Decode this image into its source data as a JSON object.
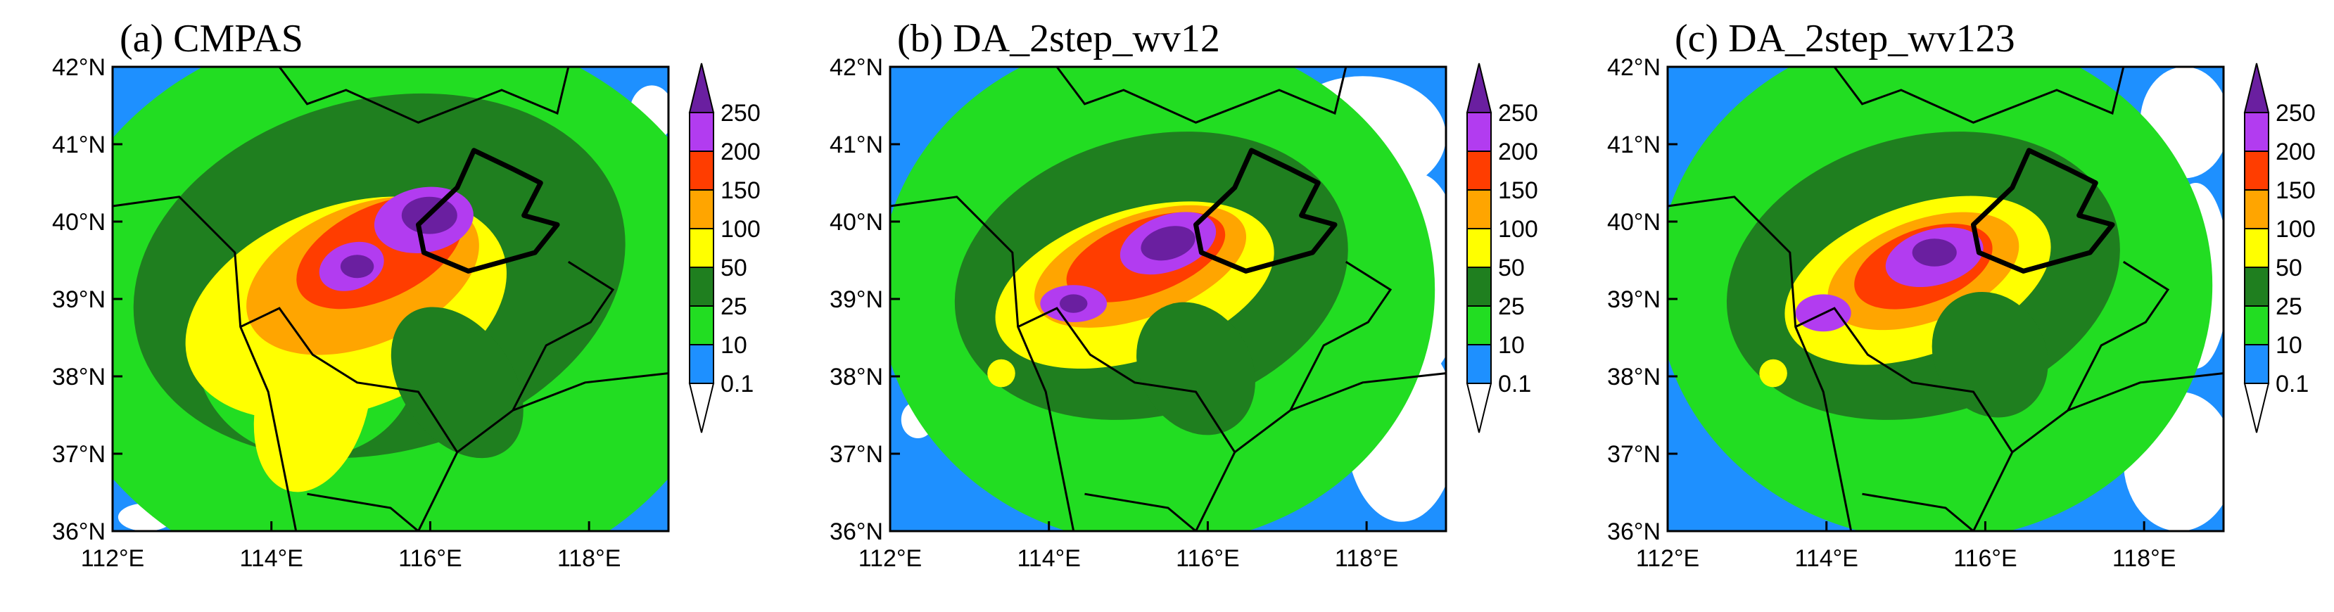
{
  "panels": [
    {
      "title": "(a) CMPAS"
    },
    {
      "title": "(b) DA_2step_wv12"
    },
    {
      "title": "(c) DA_2step_wv123"
    }
  ],
  "axes": {
    "x_ticks": [
      "112°E",
      "114°E",
      "116°E",
      "118°E"
    ],
    "x_values": [
      112,
      114,
      116,
      118
    ],
    "y_ticks": [
      "36°N",
      "37°N",
      "38°N",
      "39°N",
      "40°N",
      "41°N",
      "42°N"
    ],
    "y_values": [
      36,
      37,
      38,
      39,
      40,
      41,
      42
    ],
    "lon_range": [
      112,
      119
    ],
    "lat_range": [
      36,
      42
    ]
  },
  "colorbar": {
    "labels": [
      "0.1",
      "10",
      "25",
      "50",
      "100",
      "150",
      "200",
      "250"
    ],
    "colors": [
      "#ffffff",
      "#1e90ff",
      "#22dd22",
      "#1f7f1f",
      "#ffff00",
      "#ffa500",
      "#ff3d00",
      "#b23cf0",
      "#6a1fa0"
    ]
  }
}
